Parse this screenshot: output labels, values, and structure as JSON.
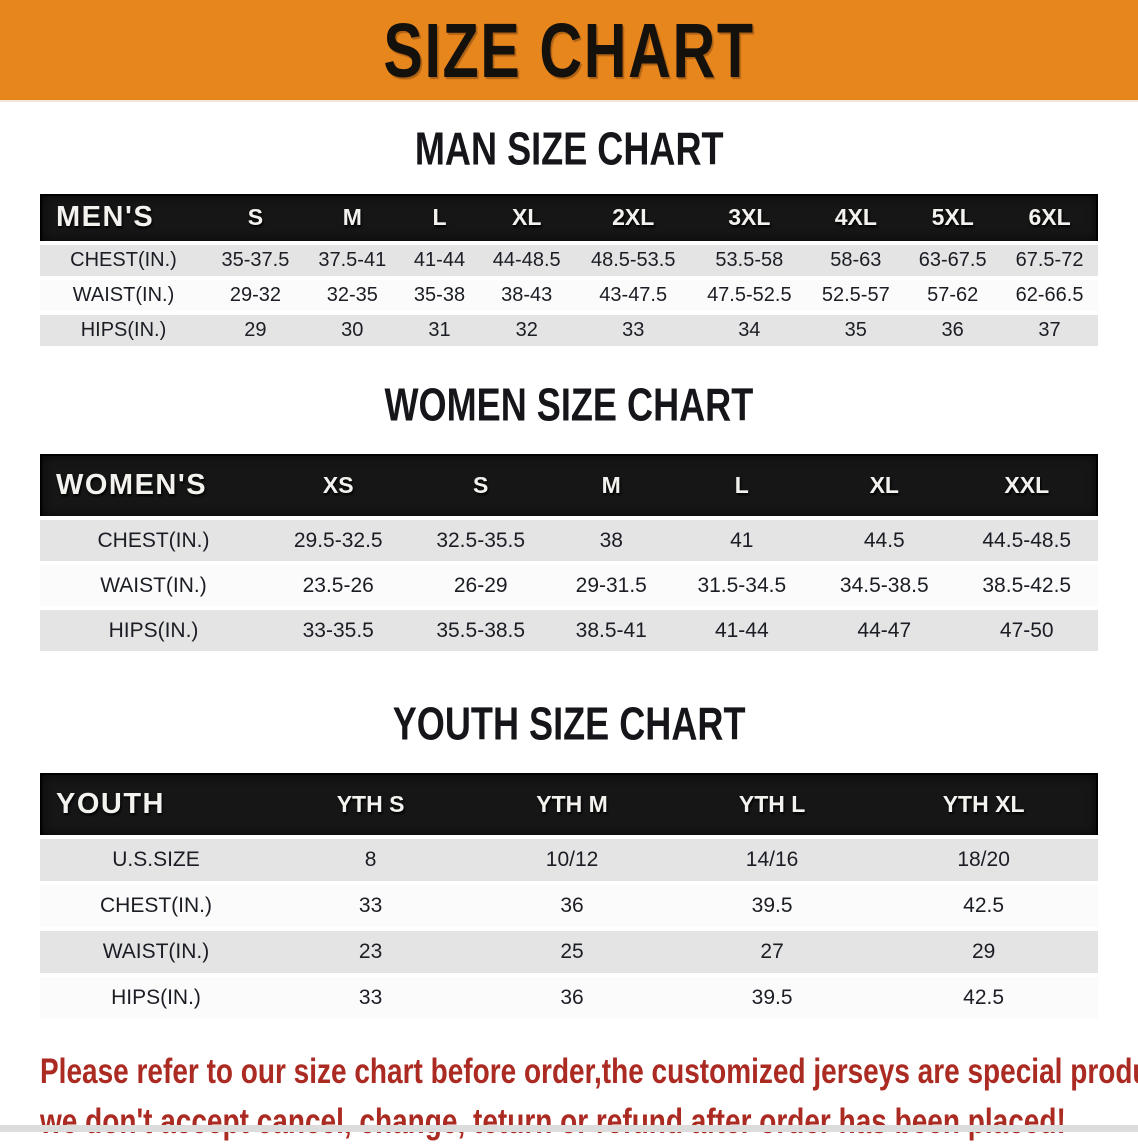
{
  "banner": {
    "title": "SIZE CHART",
    "bg_color": "#e8861e",
    "text_color": "#14100c"
  },
  "colors": {
    "table_header_bg": "#161616",
    "table_header_text": "#f4f2ee",
    "row_stripe_gray": "#e4e4e5",
    "row_stripe_white": "#fbfbfb",
    "note_red": "#ab2a22"
  },
  "sections": [
    {
      "heading": "MAN SIZE CHART",
      "table": {
        "corner_label": "MEN'S",
        "columns": [
          "S",
          "M",
          "L",
          "XL",
          "2XL",
          "3XL",
          "4XL",
          "5XL",
          "6XL"
        ],
        "rows": [
          {
            "label": "CHEST(IN.)",
            "values": [
              "35-37.5",
              "37.5-41",
              "41-44",
              "44-48.5",
              "48.5-53.5",
              "53.5-58",
              "58-63",
              "63-67.5",
              "67.5-72"
            ]
          },
          {
            "label": "WAIST(IN.)",
            "values": [
              "29-32",
              "32-35",
              "35-38",
              "38-43",
              "43-47.5",
              "47.5-52.5",
              "52.5-57",
              "57-62",
              "62-66.5"
            ]
          },
          {
            "label": "HIPS(IN.)",
            "values": [
              "29",
              "30",
              "31",
              "32",
              "33",
              "34",
              "35",
              "36",
              "37"
            ]
          }
        ]
      }
    },
    {
      "heading": "WOMEN SIZE CHART",
      "table": {
        "corner_label": "WOMEN'S",
        "columns": [
          "XS",
          "S",
          "M",
          "L",
          "XL",
          "XXL"
        ],
        "rows": [
          {
            "label": "CHEST(IN.)",
            "values": [
              "29.5-32.5",
              "32.5-35.5",
              "38",
              "41",
              "44.5",
              "44.5-48.5"
            ]
          },
          {
            "label": "WAIST(IN.)",
            "values": [
              "23.5-26",
              "26-29",
              "29-31.5",
              "31.5-34.5",
              "34.5-38.5",
              "38.5-42.5"
            ]
          },
          {
            "label": "HIPS(IN.)",
            "values": [
              "33-35.5",
              "35.5-38.5",
              "38.5-41",
              "41-44",
              "44-47",
              "47-50"
            ]
          }
        ]
      }
    },
    {
      "heading": "YOUTH SIZE CHART",
      "table": {
        "corner_label": "YOUTH",
        "columns": [
          "YTH S",
          "YTH M",
          "YTH L",
          "YTH XL"
        ],
        "rows": [
          {
            "label": "U.S.SIZE",
            "values": [
              "8",
              "10/12",
              "14/16",
              "18/20"
            ]
          },
          {
            "label": "CHEST(IN.)",
            "values": [
              "33",
              "36",
              "39.5",
              "42.5"
            ]
          },
          {
            "label": "WAIST(IN.)",
            "values": [
              "23",
              "25",
              "27",
              "29"
            ]
          },
          {
            "label": "HIPS(IN.)",
            "values": [
              "33",
              "36",
              "39.5",
              "42.5"
            ]
          }
        ]
      }
    }
  ],
  "footer_note": {
    "lines": [
      "Please refer to our size chart before order,the customized jerseys are special products,",
      "we don't accept cancel, change, teturn or refund after order has been placed!"
    ]
  }
}
